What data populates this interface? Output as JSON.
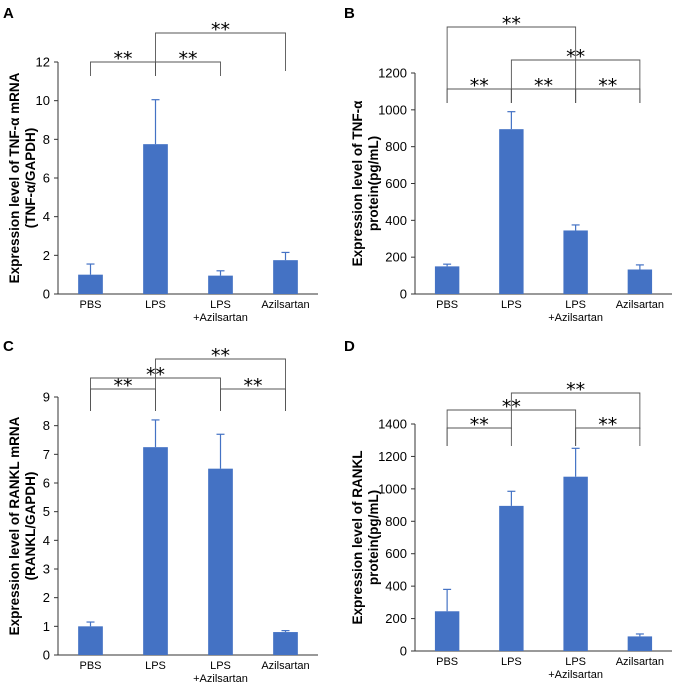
{
  "chart_data": [
    {
      "panel": "A",
      "type": "bar",
      "categories": [
        "PBS",
        "LPS",
        "LPS +Azilsartan",
        "Azilsartan"
      ],
      "category_lines": [
        [
          "PBS"
        ],
        [
          "LPS"
        ],
        [
          "LPS",
          "+Azilsartan"
        ],
        [
          "Azilsartan"
        ]
      ],
      "values": [
        1.0,
        7.75,
        0.95,
        1.75
      ],
      "errors": [
        0.55,
        2.3,
        0.25,
        0.4
      ],
      "ylabel_lines": [
        "Expression level of TNF-α mRNA",
        "(TNF-α/GAPDH)"
      ],
      "ylim": [
        0,
        12
      ],
      "yticks": [
        0,
        2,
        4,
        6,
        8,
        10,
        12
      ],
      "bar_color": "#4472C4",
      "significance": [
        {
          "from": 0,
          "to": 1,
          "label": "**"
        },
        {
          "from": 1,
          "to": 2,
          "label": "**"
        },
        {
          "from": 1,
          "to": 3,
          "label": "**"
        }
      ]
    },
    {
      "panel": "B",
      "type": "bar",
      "categories": [
        "PBS",
        "LPS",
        "LPS +Azilsartan",
        "Azilsartan"
      ],
      "category_lines": [
        [
          "PBS"
        ],
        [
          "LPS"
        ],
        [
          "LPS",
          "+Azilsartan"
        ],
        [
          "Azilsartan"
        ]
      ],
      "values": [
        150,
        895,
        345,
        133
      ],
      "errors": [
        12,
        95,
        30,
        25
      ],
      "ylabel_lines": [
        "Expression level of TNF-α",
        "protein(pg/mL)"
      ],
      "ylim": [
        0,
        1200
      ],
      "yticks": [
        0,
        200,
        400,
        600,
        800,
        1000,
        1200
      ],
      "bar_color": "#4472C4",
      "significance": [
        {
          "from": 0,
          "to": 1,
          "label": "**"
        },
        {
          "from": 1,
          "to": 2,
          "label": "**"
        },
        {
          "from": 2,
          "to": 3,
          "label": "**"
        },
        {
          "from": 1,
          "to": 3,
          "label": "**"
        },
        {
          "from": 0,
          "to": 2,
          "label": "**"
        }
      ]
    },
    {
      "panel": "C",
      "type": "bar",
      "categories": [
        "PBS",
        "LPS",
        "LPS +Azilsartan",
        "Azilsartan"
      ],
      "category_lines": [
        [
          "PBS"
        ],
        [
          "LPS"
        ],
        [
          "LPS",
          "+Azilsartan"
        ],
        [
          "Azilsartan"
        ]
      ],
      "values": [
        1.0,
        7.25,
        6.5,
        0.8
      ],
      "errors": [
        0.15,
        0.95,
        1.2,
        0.05
      ],
      "ylabel_lines": [
        "Expression level of RANKL mRNA",
        "(RANKL/GAPDH)"
      ],
      "ylim": [
        0,
        9
      ],
      "yticks": [
        0,
        1,
        2,
        3,
        4,
        5,
        6,
        7,
        8,
        9
      ],
      "bar_color": "#4472C4",
      "significance": [
        {
          "from": 0,
          "to": 1,
          "label": "**"
        },
        {
          "from": 0,
          "to": 2,
          "label": "**"
        },
        {
          "from": 2,
          "to": 3,
          "label": "**"
        },
        {
          "from": 1,
          "to": 3,
          "label": "**"
        }
      ]
    },
    {
      "panel": "D",
      "type": "bar",
      "categories": [
        "PBS",
        "LPS",
        "LPS +Azilsartan",
        "Azilsartan"
      ],
      "category_lines": [
        [
          "PBS"
        ],
        [
          "LPS"
        ],
        [
          "LPS",
          "+Azilsartan"
        ],
        [
          "Azilsartan"
        ]
      ],
      "values": [
        245,
        895,
        1075,
        90
      ],
      "errors": [
        135,
        90,
        175,
        15
      ],
      "ylabel_lines": [
        "Expression level of RANKL",
        "protein(pg/mL)"
      ],
      "ylim": [
        0,
        1400
      ],
      "yticks": [
        0,
        200,
        400,
        600,
        800,
        1000,
        1200,
        1400
      ],
      "bar_color": "#4472C4",
      "significance": [
        {
          "from": 0,
          "to": 1,
          "label": "**"
        },
        {
          "from": 0,
          "to": 2,
          "label": "**"
        },
        {
          "from": 2,
          "to": 3,
          "label": "**"
        },
        {
          "from": 1,
          "to": 3,
          "label": "**"
        }
      ]
    }
  ]
}
